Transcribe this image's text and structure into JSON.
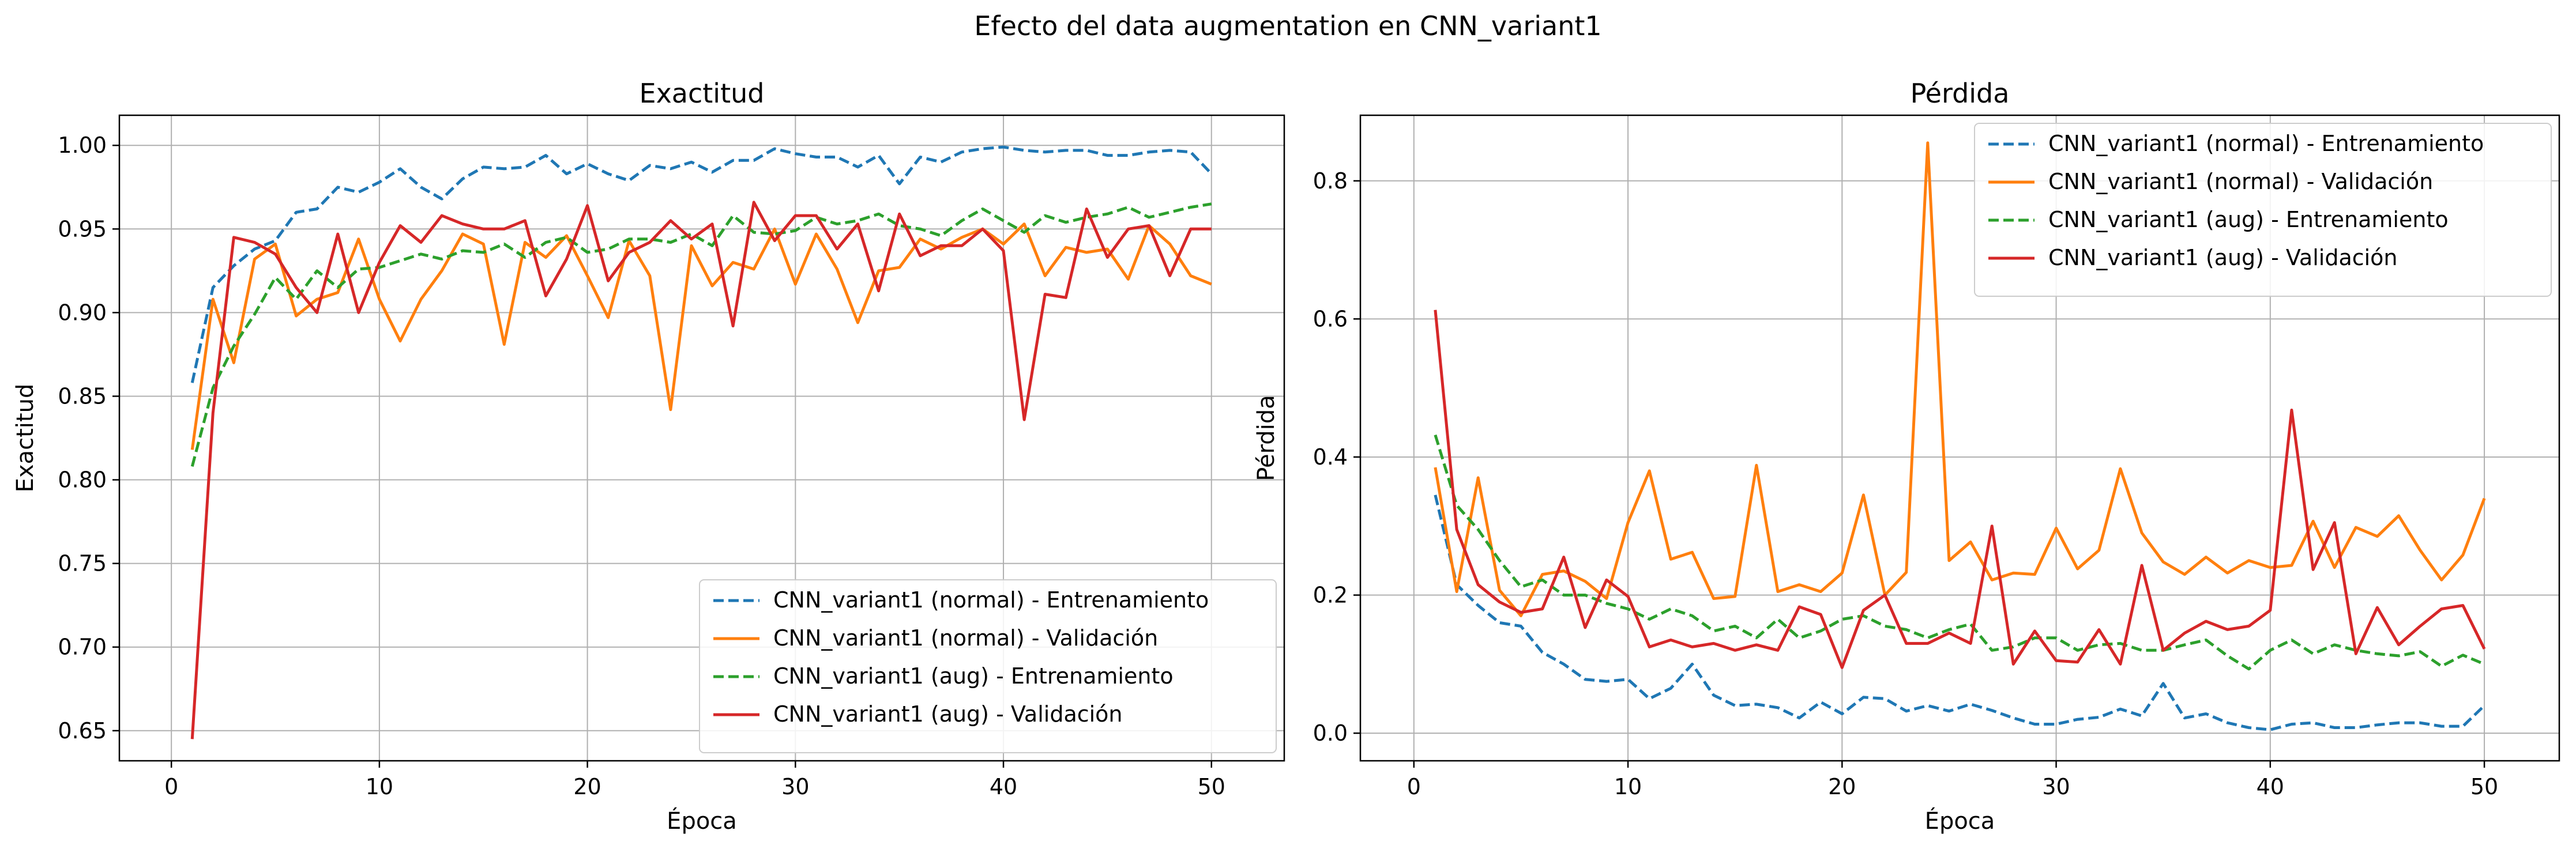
{
  "suptitle": "Efecto del data augmentation en CNN_variant1",
  "colors": {
    "blue": "#1f77b4",
    "orange": "#ff7f0e",
    "green": "#2ca02c",
    "red": "#d62728",
    "grid": "#b0b0b0"
  },
  "chart_data": [
    {
      "type": "line",
      "title": "Exactitud",
      "xlabel": "Época",
      "ylabel": "Exactitud",
      "xlim": [
        -2.5,
        53.5
      ],
      "ylim": [
        0.632,
        1.018
      ],
      "xticks": [
        0,
        10,
        20,
        30,
        40,
        50
      ],
      "yticks": [
        0.65,
        0.7,
        0.75,
        0.8,
        0.85,
        0.9,
        0.95,
        1.0
      ],
      "xtick_labels": [
        "0",
        "10",
        "20",
        "30",
        "40",
        "50"
      ],
      "ytick_labels": [
        "0.65",
        "0.70",
        "0.75",
        "0.80",
        "0.85",
        "0.90",
        "0.95",
        "1.00"
      ],
      "grid": true,
      "legend_position": "lower right",
      "x": [
        1,
        2,
        3,
        4,
        5,
        6,
        7,
        8,
        9,
        10,
        11,
        12,
        13,
        14,
        15,
        16,
        17,
        18,
        19,
        20,
        21,
        22,
        23,
        24,
        25,
        26,
        27,
        28,
        29,
        30,
        31,
        32,
        33,
        34,
        35,
        36,
        37,
        38,
        39,
        40,
        41,
        42,
        43,
        44,
        45,
        46,
        47,
        48,
        49,
        50
      ],
      "series": [
        {
          "name": "CNN_variant1 (normal) - Entrenamiento",
          "color": "#1f77b4",
          "dash": "dashed",
          "values": [
            0.858,
            0.915,
            0.928,
            0.938,
            0.943,
            0.96,
            0.962,
            0.975,
            0.972,
            0.978,
            0.986,
            0.975,
            0.968,
            0.98,
            0.987,
            0.986,
            0.987,
            0.994,
            0.983,
            0.989,
            0.983,
            0.979,
            0.988,
            0.986,
            0.99,
            0.984,
            0.991,
            0.991,
            0.998,
            0.995,
            0.993,
            0.993,
            0.987,
            0.994,
            0.977,
            0.993,
            0.99,
            0.996,
            0.998,
            0.999,
            0.997,
            0.996,
            0.997,
            0.997,
            0.994,
            0.994,
            0.996,
            0.997,
            0.996,
            0.983
          ]
        },
        {
          "name": "CNN_variant1 (normal) - Validación",
          "color": "#ff7f0e",
          "dash": "solid",
          "values": [
            0.818,
            0.908,
            0.87,
            0.932,
            0.941,
            0.898,
            0.908,
            0.912,
            0.944,
            0.908,
            0.883,
            0.908,
            0.925,
            0.947,
            0.941,
            0.881,
            0.942,
            0.933,
            0.946,
            0.922,
            0.897,
            0.943,
            0.922,
            0.842,
            0.94,
            0.916,
            0.93,
            0.926,
            0.95,
            0.917,
            0.947,
            0.926,
            0.894,
            0.925,
            0.927,
            0.944,
            0.938,
            0.945,
            0.95,
            0.941,
            0.953,
            0.922,
            0.939,
            0.936,
            0.938,
            0.92,
            0.952,
            0.941,
            0.922,
            0.917
          ]
        },
        {
          "name": "CNN_variant1 (aug) - Entrenamiento",
          "color": "#2ca02c",
          "dash": "dashed",
          "values": [
            0.808,
            0.855,
            0.88,
            0.899,
            0.921,
            0.908,
            0.925,
            0.915,
            0.926,
            0.927,
            0.931,
            0.935,
            0.932,
            0.937,
            0.936,
            0.941,
            0.933,
            0.942,
            0.945,
            0.936,
            0.938,
            0.944,
            0.944,
            0.942,
            0.947,
            0.94,
            0.958,
            0.948,
            0.947,
            0.949,
            0.957,
            0.953,
            0.955,
            0.959,
            0.952,
            0.95,
            0.946,
            0.955,
            0.962,
            0.955,
            0.948,
            0.958,
            0.954,
            0.957,
            0.959,
            0.963,
            0.957,
            0.96,
            0.963,
            0.965
          ]
        },
        {
          "name": "CNN_variant1 (aug) - Validación",
          "color": "#d62728",
          "dash": "solid",
          "values": [
            0.645,
            0.84,
            0.945,
            0.942,
            0.935,
            0.915,
            0.9,
            0.947,
            0.9,
            0.93,
            0.952,
            0.942,
            0.958,
            0.953,
            0.95,
            0.95,
            0.955,
            0.91,
            0.932,
            0.964,
            0.919,
            0.936,
            0.942,
            0.955,
            0.944,
            0.953,
            0.892,
            0.966,
            0.943,
            0.958,
            0.958,
            0.938,
            0.953,
            0.913,
            0.959,
            0.934,
            0.94,
            0.94,
            0.95,
            0.937,
            0.836,
            0.911,
            0.909,
            0.962,
            0.933,
            0.95,
            0.952,
            0.922,
            0.95,
            0.95
          ]
        }
      ]
    },
    {
      "type": "line",
      "title": "Pérdida",
      "xlabel": "Época",
      "ylabel": "Pérdida",
      "xlim": [
        -2.5,
        53.5
      ],
      "ylim": [
        -0.04,
        0.895
      ],
      "xticks": [
        0,
        10,
        20,
        30,
        40,
        50
      ],
      "yticks": [
        0.0,
        0.2,
        0.4,
        0.6,
        0.8
      ],
      "xtick_labels": [
        "0",
        "10",
        "20",
        "30",
        "40",
        "50"
      ],
      "ytick_labels": [
        "0.0",
        "0.2",
        "0.4",
        "0.6",
        "0.8"
      ],
      "grid": true,
      "legend_position": "upper right",
      "x": [
        1,
        2,
        3,
        4,
        5,
        6,
        7,
        8,
        9,
        10,
        11,
        12,
        13,
        14,
        15,
        16,
        17,
        18,
        19,
        20,
        21,
        22,
        23,
        24,
        25,
        26,
        27,
        28,
        29,
        30,
        31,
        32,
        33,
        34,
        35,
        36,
        37,
        38,
        39,
        40,
        41,
        42,
        43,
        44,
        45,
        46,
        47,
        48,
        49,
        50
      ],
      "series": [
        {
          "name": "CNN_variant1 (normal) - Entrenamiento",
          "color": "#1f77b4",
          "dash": "dashed",
          "values": [
            0.345,
            0.215,
            0.185,
            0.16,
            0.155,
            0.117,
            0.1,
            0.078,
            0.075,
            0.078,
            0.05,
            0.065,
            0.1,
            0.055,
            0.04,
            0.042,
            0.037,
            0.022,
            0.045,
            0.028,
            0.052,
            0.05,
            0.032,
            0.04,
            0.032,
            0.042,
            0.033,
            0.022,
            0.013,
            0.013,
            0.02,
            0.023,
            0.035,
            0.025,
            0.072,
            0.022,
            0.028,
            0.015,
            0.008,
            0.005,
            0.013,
            0.015,
            0.008,
            0.008,
            0.012,
            0.015,
            0.015,
            0.01,
            0.01,
            0.04
          ]
        },
        {
          "name": "CNN_variant1 (normal) - Validación",
          "color": "#ff7f0e",
          "dash": "solid",
          "values": [
            0.385,
            0.205,
            0.37,
            0.207,
            0.17,
            0.23,
            0.235,
            0.22,
            0.195,
            0.305,
            0.38,
            0.252,
            0.262,
            0.195,
            0.198,
            0.388,
            0.205,
            0.215,
            0.205,
            0.232,
            0.345,
            0.2,
            0.233,
            0.855,
            0.25,
            0.277,
            0.222,
            0.232,
            0.23,
            0.297,
            0.238,
            0.265,
            0.383,
            0.29,
            0.248,
            0.23,
            0.255,
            0.232,
            0.25,
            0.24,
            0.243,
            0.307,
            0.24,
            0.298,
            0.285,
            0.315,
            0.265,
            0.222,
            0.258,
            0.34
          ]
        },
        {
          "name": "CNN_variant1 (aug) - Entrenamiento",
          "color": "#2ca02c",
          "dash": "dashed",
          "values": [
            0.432,
            0.33,
            0.295,
            0.25,
            0.212,
            0.222,
            0.2,
            0.2,
            0.188,
            0.18,
            0.165,
            0.18,
            0.17,
            0.148,
            0.155,
            0.138,
            0.165,
            0.138,
            0.148,
            0.165,
            0.17,
            0.155,
            0.15,
            0.138,
            0.15,
            0.158,
            0.12,
            0.125,
            0.138,
            0.138,
            0.12,
            0.128,
            0.13,
            0.12,
            0.12,
            0.128,
            0.135,
            0.112,
            0.093,
            0.12,
            0.135,
            0.115,
            0.128,
            0.12,
            0.115,
            0.112,
            0.118,
            0.097,
            0.113,
            0.1
          ]
        },
        {
          "name": "CNN_variant1 (aug) - Validación",
          "color": "#d62728",
          "dash": "solid",
          "values": [
            0.613,
            0.295,
            0.215,
            0.19,
            0.175,
            0.18,
            0.255,
            0.153,
            0.222,
            0.198,
            0.125,
            0.135,
            0.125,
            0.13,
            0.12,
            0.128,
            0.12,
            0.183,
            0.172,
            0.095,
            0.178,
            0.2,
            0.13,
            0.13,
            0.145,
            0.13,
            0.3,
            0.1,
            0.148,
            0.105,
            0.103,
            0.15,
            0.1,
            0.243,
            0.12,
            0.145,
            0.162,
            0.15,
            0.155,
            0.178,
            0.468,
            0.237,
            0.305,
            0.115,
            0.182,
            0.128,
            0.155,
            0.18,
            0.185,
            0.122
          ]
        }
      ]
    }
  ]
}
